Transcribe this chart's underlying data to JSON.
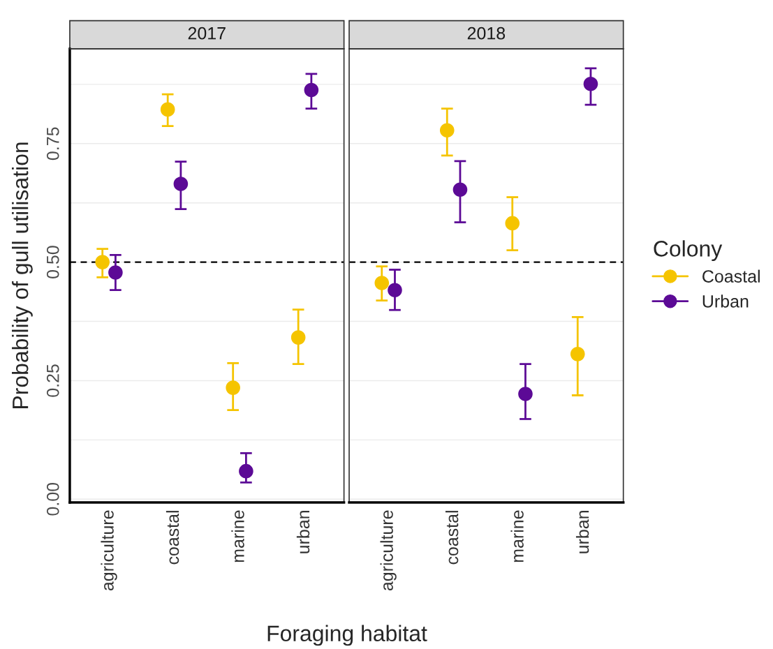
{
  "chart_data": [
    {
      "type": "scatter",
      "title": "2017",
      "ylabel": "Probability of gull utilisation",
      "xlabel": "Foraging habitat",
      "categories": [
        "agriculture",
        "coastal",
        "marine",
        "urban"
      ],
      "series": [
        {
          "name": "Coastal",
          "color": "#f5c400",
          "values": [
            0.5,
            0.822,
            0.235,
            0.341
          ],
          "errors": [
            [
              0.468,
              0.528
            ],
            [
              0.787,
              0.854
            ],
            [
              0.188,
              0.287
            ],
            [
              0.285,
              0.4
            ]
          ]
        },
        {
          "name": "Urban",
          "color": "#5c0a96",
          "values": [
            0.478,
            0.665,
            0.059,
            0.863
          ],
          "errors": [
            [
              0.441,
              0.515
            ],
            [
              0.612,
              0.712
            ],
            [
              0.035,
              0.097
            ],
            [
              0.824,
              0.897
            ]
          ]
        }
      ],
      "ylim": [
        -0.007,
        0.95
      ],
      "yticks": [
        {
          "value": 0,
          "label": "0.00"
        },
        {
          "value": 0.125,
          "label": null
        },
        {
          "value": 0.25,
          "label": "0.25"
        },
        {
          "value": 0.375,
          "label": null
        },
        {
          "value": 0.5,
          "label": "0.50"
        },
        {
          "value": 0.625,
          "label": null
        },
        {
          "value": 0.75,
          "label": "0.75"
        },
        {
          "value": 0.875,
          "label": null
        }
      ],
      "ref_lines": [
        {
          "axis": "y",
          "value": 0.5,
          "color": "#000000",
          "line_style": "dashed"
        }
      ],
      "grid": "y",
      "marker": "circle",
      "legend": "right",
      "legend_title": "Colony"
    },
    {
      "type": "scatter",
      "title": "2018",
      "categories": [
        "agriculture",
        "coastal",
        "marine",
        "urban"
      ],
      "series": [
        {
          "name": "Coastal",
          "color": "#f5c400",
          "values": [
            0.456,
            0.778,
            0.582,
            0.306
          ],
          "errors": [
            [
              0.419,
              0.491
            ],
            [
              0.725,
              0.824
            ],
            [
              0.525,
              0.637
            ],
            [
              0.219,
              0.384
            ]
          ]
        },
        {
          "name": "Urban",
          "color": "#5c0a96",
          "values": [
            0.441,
            0.653,
            0.222,
            0.876
          ],
          "errors": [
            [
              0.399,
              0.484
            ],
            [
              0.584,
              0.713
            ],
            [
              0.169,
              0.285
            ],
            [
              0.832,
              0.909
            ]
          ]
        }
      ],
      "ylim": [
        -0.007,
        0.95
      ],
      "yticks": [
        0,
        {
          "value": 0.125,
          "label": null
        },
        0.25,
        {
          "value": 0.375,
          "label": null
        },
        0.5,
        {
          "value": 0.625,
          "label": null
        },
        0.75,
        {
          "value": 0.875,
          "label": null
        }
      ],
      "tick_labels": "x",
      "ref_lines": [
        {
          "axis": "y",
          "value": 0.5,
          "color": "#000000",
          "line_style": "dashed"
        }
      ],
      "grid": "y",
      "marker": "circle",
      "legend": "right"
    }
  ]
}
